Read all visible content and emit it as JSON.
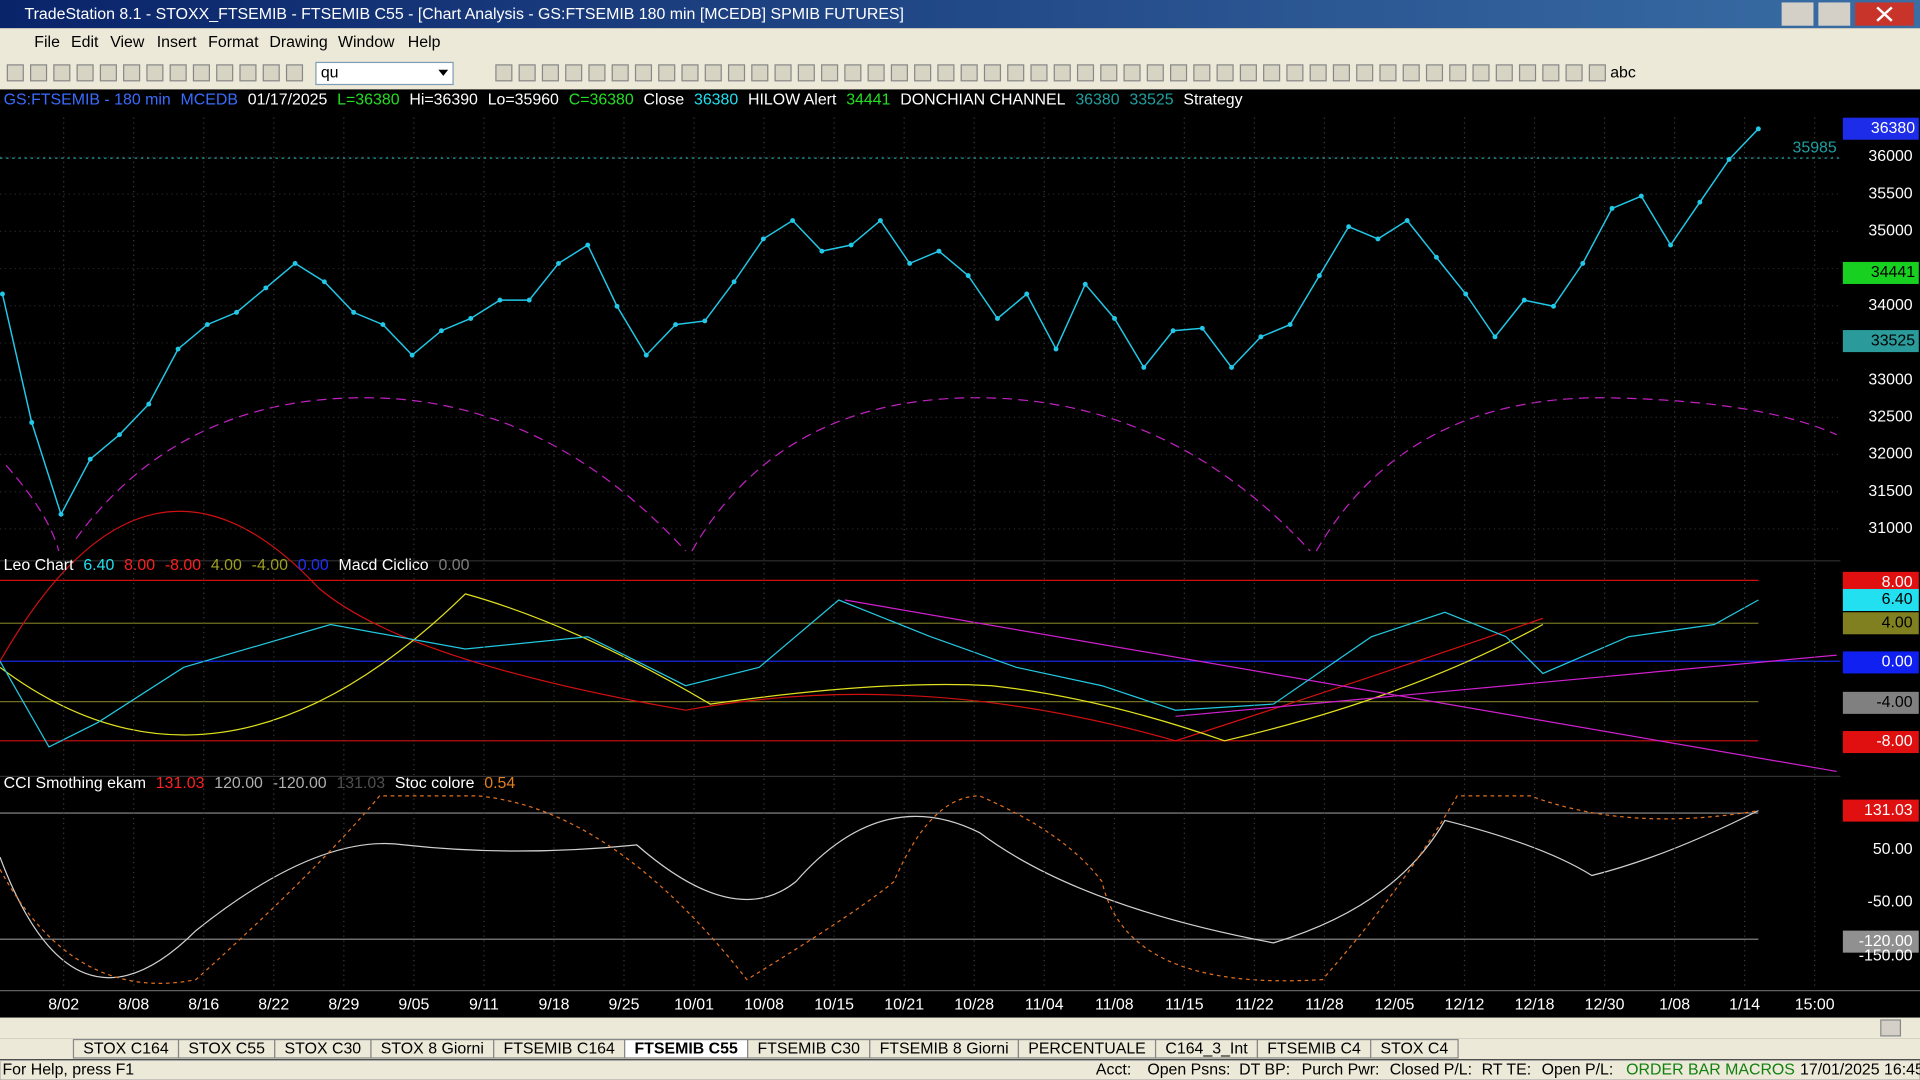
{
  "window": {
    "title": "TradeStation 8.1 - STOXX_FTSEMIB - FTSEMIB C55 - [Chart Analysis - GS:FTSEMIB  180 min  [MCEDB] SPMIB FUTURES]"
  },
  "menu": [
    "File",
    "Edit",
    "View",
    "Insert",
    "Format",
    "Drawing",
    "Window",
    "Help"
  ],
  "toolbar": {
    "symbol": "qu",
    "text_tool": "abc"
  },
  "chart": {
    "price_header": [
      {
        "text": "GS:FTSEMIB - 180 min",
        "color": "#3a6cff"
      },
      {
        "text": "MCEDB",
        "color": "#3a6cff"
      },
      {
        "text": "01/17/2025",
        "color": "#ffffff"
      },
      {
        "text": "L=36380",
        "color": "#22e022"
      },
      {
        "text": "Hi=36390",
        "color": "#ffffff"
      },
      {
        "text": "Lo=35960",
        "color": "#ffffff"
      },
      {
        "text": "C=36380",
        "color": "#22e022"
      },
      {
        "text": "Close",
        "color": "#ffffff"
      },
      {
        "text": "36380",
        "color": "#22e0f0"
      },
      {
        "text": "HILOW Alert",
        "color": "#ffffff"
      },
      {
        "text": "34441",
        "color": "#22e022"
      },
      {
        "text": "DONCHIAN CHANNEL",
        "color": "#ffffff"
      },
      {
        "text": "36380",
        "color": "#20a0a0"
      },
      {
        "text": "33525",
        "color": "#20a0a0"
      },
      {
        "text": "Strategy",
        "color": "#ffffff"
      }
    ],
    "ylim": [
      30670,
      36530
    ],
    "yticks": [
      31000,
      31500,
      32000,
      32500,
      33000,
      33500,
      34000,
      34500,
      35000,
      35500,
      36000
    ],
    "dates": [
      "8/02",
      "8/08",
      "8/16",
      "8/22",
      "8/29",
      "9/05",
      "9/11",
      "9/18",
      "9/25",
      "10/01",
      "10/08",
      "10/15",
      "10/21",
      "10/28",
      "11/04",
      "11/08",
      "11/15",
      "11/22",
      "11/28",
      "12/05",
      "12/12",
      "12/18",
      "12/30",
      "1/08",
      "1/14",
      "15:00"
    ],
    "close": [
      34158,
      32431,
      31197,
      31938,
      32267,
      32678,
      33418,
      33747,
      33911,
      34240,
      34569,
      34322,
      33911,
      33747,
      33336,
      33664,
      33829,
      34076,
      34076,
      34569,
      34816,
      33993,
      33336,
      33747,
      33796,
      34322,
      34898,
      35145,
      34734,
      34816,
      35145,
      34569,
      34734,
      34405,
      33829,
      34158,
      33418,
      34289,
      33829,
      33171,
      33664,
      33697,
      33171,
      33582,
      33747,
      34405,
      35063,
      34898,
      35145,
      34651,
      34158,
      33582,
      34076,
      33993,
      34569,
      35309,
      35474,
      34816,
      35392,
      35967,
      36378
    ],
    "flags": [
      {
        "value": 36380,
        "color": "#1c2ce8"
      },
      {
        "value": 34441,
        "color": "#18d020"
      },
      {
        "value": 33525,
        "color": "#2a9a9a"
      }
    ],
    "last_line": 35985,
    "indicator_header": [
      {
        "text": "Leo Chart",
        "color": "#ffffff"
      },
      {
        "text": "6.40",
        "color": "#22e0f0"
      },
      {
        "text": "8.00",
        "color": "#ff2020"
      },
      {
        "text": "-8.00",
        "color": "#ff2020"
      },
      {
        "text": "4.00",
        "color": "#a0a020"
      },
      {
        "text": "-4.00",
        "color": "#a0a020"
      },
      {
        "text": "0.00",
        "color": "#2030ff"
      },
      {
        "text": "Macd Ciclico",
        "color": "#ffffff"
      },
      {
        "text": "0.00",
        "color": "#808080"
      }
    ],
    "indicator_axis": [
      {
        "text": "8.00",
        "color": "#e01010"
      },
      {
        "text": "6.40",
        "color": "#22e0f0"
      },
      {
        "text": "4.00",
        "color": "#808020"
      },
      {
        "text": "0.00",
        "color": "#1020f0"
      },
      {
        "text": "-4.00",
        "color": "#808080"
      },
      {
        "text": "-8.00",
        "color": "#e01010"
      }
    ],
    "cci_header": [
      {
        "text": "CCI Smothing ekam",
        "color": "#ffffff"
      },
      {
        "text": "131.03",
        "color": "#ff2020"
      },
      {
        "text": "120.00",
        "color": "#b0b0b0"
      },
      {
        "text": "-120.00",
        "color": "#b0b0b0"
      },
      {
        "text": "131.03",
        "color": "#505050"
      },
      {
        "text": "Stoc colore",
        "color": "#ffffff"
      },
      {
        "text": "0.54",
        "color": "#e08020"
      }
    ],
    "cci_axis": [
      {
        "text": "131.03",
        "color": "#e01010"
      },
      {
        "text": "50.00",
        "color": "#000000"
      },
      {
        "text": "-50.00",
        "color": "#000000"
      },
      {
        "text": "-120.00",
        "color": "#909090"
      },
      {
        "text": "-150.00",
        "color": "#000000"
      }
    ]
  },
  "tabs": [
    "STOX C164",
    "STOX C55",
    "STOX C30",
    "STOX 8 Giorni",
    "FTSEMIB C164",
    "FTSEMIB C55",
    "FTSEMIB C30",
    "FTSEMIB 8 Giorni",
    "PERCENTUALE",
    "C164_3_Int",
    "FTSEMIB C4",
    "STOX C4"
  ],
  "status": [
    "For Help, press F1",
    "Acct:",
    "Open Psns:",
    "DT BP:",
    "Purch Pwr:",
    "Closed P/L:",
    "RT TE:",
    "Open P/L:",
    "ORDER BAR MACROS",
    "17/01/2025 16:45"
  ]
}
